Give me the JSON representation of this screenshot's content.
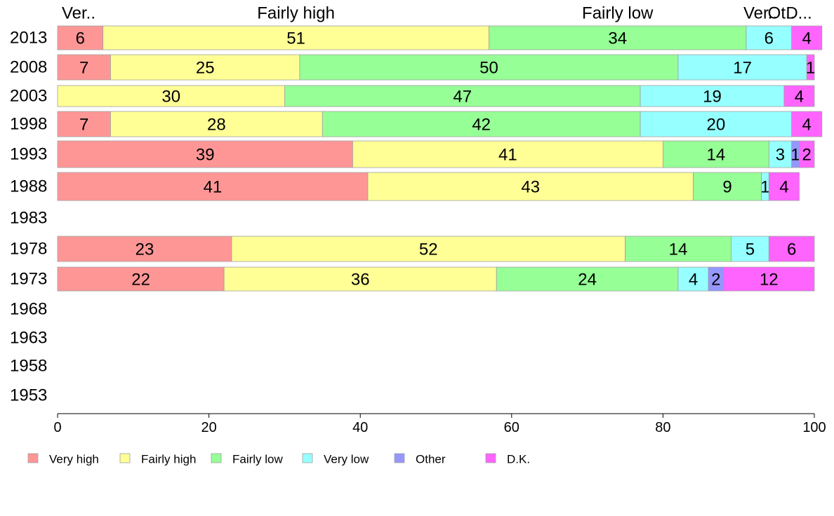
{
  "chart_data": {
    "type": "bar",
    "orientation": "horizontal",
    "stacked": true,
    "title": "",
    "xlabel": "",
    "ylabel": "",
    "xlim": [
      0,
      100
    ],
    "x_ticks": [
      0,
      20,
      40,
      60,
      80,
      100
    ],
    "grid": false,
    "legend_position": "bottom",
    "categories": [
      "2013",
      "2008",
      "2003",
      "1998",
      "1993",
      "1988",
      "1983",
      "1978",
      "1973",
      "1968",
      "1963",
      "1958",
      "1953"
    ],
    "series": [
      {
        "name": "Very high",
        "color": "#ff9696",
        "values": [
          6,
          7,
          0,
          7,
          39,
          41,
          null,
          23,
          22,
          null,
          null,
          null,
          null
        ]
      },
      {
        "name": "Fairly high",
        "color": "#ffff96",
        "values": [
          51,
          25,
          30,
          28,
          41,
          43,
          null,
          52,
          36,
          null,
          null,
          null,
          null
        ]
      },
      {
        "name": "Fairly low",
        "color": "#96ff96",
        "values": [
          34,
          50,
          47,
          42,
          14,
          9,
          null,
          14,
          24,
          null,
          null,
          null,
          null
        ]
      },
      {
        "name": "Very low",
        "color": "#96ffff",
        "values": [
          6,
          17,
          19,
          20,
          3,
          1,
          null,
          5,
          4,
          null,
          null,
          null,
          null
        ]
      },
      {
        "name": "Other",
        "color": "#9696ff",
        "values": [
          0,
          0,
          0,
          0,
          1,
          0,
          null,
          0,
          2,
          null,
          null,
          null,
          null
        ]
      },
      {
        "name": "D.K.",
        "color": "#ff64ff",
        "values": [
          4,
          1,
          4,
          4,
          2,
          4,
          null,
          6,
          12,
          null,
          null,
          null,
          null
        ]
      }
    ],
    "top_labels": [
      "Ver..",
      "Fairly high",
      "Fairly low",
      "Ver..",
      "Ot..",
      "D..."
    ]
  }
}
